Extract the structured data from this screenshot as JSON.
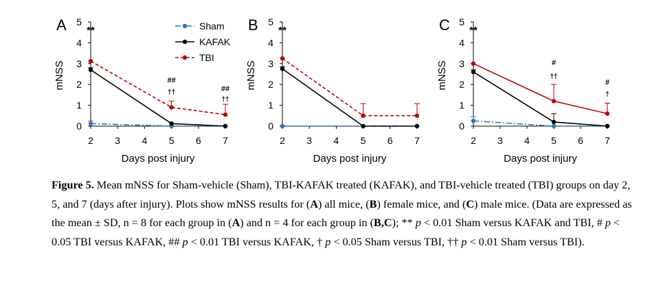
{
  "chart_data": [
    {
      "type": "line",
      "panel_label": "A",
      "x": [
        2,
        5,
        7
      ],
      "xticks": [
        2,
        3,
        4,
        5,
        6,
        7
      ],
      "yticks": [
        0,
        1,
        2,
        3,
        4,
        5
      ],
      "xlim": [
        2,
        7
      ],
      "ylim": [
        0,
        5
      ],
      "xlabel": "Days post injury",
      "ylabel": "mNSS",
      "series": [
        {
          "name": "Sham",
          "values": [
            0.12,
            0.0,
            0.0
          ],
          "sd": [
            0.12,
            0.0,
            0.0
          ],
          "color": "#2e75b6",
          "style": "dashdot"
        },
        {
          "name": "KAFAK",
          "values": [
            2.7,
            0.12,
            0.0
          ],
          "sd": [
            0.1,
            0.0,
            0.0
          ],
          "color": "#000000",
          "style": "solid"
        },
        {
          "name": "TBI",
          "values": [
            3.12,
            0.9,
            0.55
          ],
          "sd": [
            0.0,
            0.3,
            0.5
          ],
          "color": "#c00000",
          "style": "dashed"
        }
      ],
      "annotations": [
        {
          "x": 2,
          "y": 4.6,
          "text": "**"
        },
        {
          "x": 5,
          "y": 2.25,
          "text": "##"
        },
        {
          "x": 5,
          "y": 1.7,
          "text": "††"
        },
        {
          "x": 7,
          "y": 1.85,
          "text": "##"
        },
        {
          "x": 7,
          "y": 1.35,
          "text": "††"
        }
      ],
      "legend": {
        "position": "top",
        "entries": [
          "Sham",
          "KAFAK",
          "TBI"
        ]
      }
    },
    {
      "type": "line",
      "panel_label": "B",
      "x": [
        2,
        5,
        7
      ],
      "xticks": [
        2,
        3,
        4,
        5,
        6,
        7
      ],
      "yticks": [
        0,
        1,
        2,
        3,
        4,
        5
      ],
      "xlim": [
        2,
        7
      ],
      "ylim": [
        0,
        5
      ],
      "xlabel": "Days post injury",
      "ylabel": "mNSS",
      "series": [
        {
          "name": "Sham",
          "values": [
            0.0,
            0.0,
            0.0
          ],
          "sd": [
            0.0,
            0.0,
            0.0
          ],
          "color": "#2e75b6",
          "style": "dashdot"
        },
        {
          "name": "KAFAK",
          "values": [
            2.75,
            0.0,
            0.0
          ],
          "sd": [
            0.1,
            0.0,
            0.0
          ],
          "color": "#000000",
          "style": "solid"
        },
        {
          "name": "TBI",
          "values": [
            3.25,
            0.5,
            0.5
          ],
          "sd": [
            0.0,
            0.58,
            0.58
          ],
          "color": "#c00000",
          "style": "dashed"
        }
      ],
      "annotations": [
        {
          "x": 2,
          "y": 4.6,
          "text": "**"
        }
      ]
    },
    {
      "type": "line",
      "panel_label": "C",
      "x": [
        2,
        5,
        7
      ],
      "xticks": [
        2,
        3,
        4,
        5,
        6,
        7
      ],
      "yticks": [
        0,
        1,
        2,
        3,
        4,
        5
      ],
      "xlim": [
        2,
        7
      ],
      "ylim": [
        0,
        5
      ],
      "xlabel": "Days post injury",
      "ylabel": "mNSS",
      "series": [
        {
          "name": "Sham",
          "values": [
            0.25,
            0.0,
            0.0
          ],
          "sd": [
            0.2,
            0.0,
            0.0
          ],
          "color": "#2e75b6",
          "style": "dashdot"
        },
        {
          "name": "KAFAK",
          "values": [
            2.6,
            0.2,
            0.0
          ],
          "sd": [
            0.1,
            0.4,
            0.0
          ],
          "color": "#000000",
          "style": "solid"
        },
        {
          "name": "TBI",
          "values": [
            3.0,
            1.2,
            0.6
          ],
          "sd": [
            0.0,
            0.8,
            0.5
          ],
          "color": "#c00000",
          "style": "solid"
        }
      ],
      "annotations": [
        {
          "x": 2,
          "y": 4.6,
          "text": "**"
        },
        {
          "x": 5,
          "y": 3.1,
          "text": "#"
        },
        {
          "x": 5,
          "y": 2.45,
          "text": "††"
        },
        {
          "x": 7,
          "y": 2.15,
          "text": "#"
        },
        {
          "x": 7,
          "y": 1.6,
          "text": "†"
        }
      ]
    }
  ],
  "caption": {
    "figure_label": "Figure 5.",
    "parts": [
      {
        "t": " Mean mNSS for Sham-vehicle (Sham), TBI-KAFAK treated (KAFAK), and TBI-vehicle treated (TBI) groups on day 2, 5, and 7 (days after injury). Plots show mNSS results for ("
      },
      {
        "t": "A",
        "b": true
      },
      {
        "t": ") all mice, ("
      },
      {
        "t": "B",
        "b": true
      },
      {
        "t": ") female mice, and ("
      },
      {
        "t": "C",
        "b": true
      },
      {
        "t": ") male mice. (Data are expressed as the mean ± SD, n = 8 for each group in ("
      },
      {
        "t": "A",
        "b": true
      },
      {
        "t": ") and n = 4 for each group in ("
      },
      {
        "t": "B,C",
        "b": true
      },
      {
        "t": "); ** "
      },
      {
        "t": "p",
        "i": true
      },
      {
        "t": " < 0.01 Sham versus KAFAK and TBI, # "
      },
      {
        "t": "p",
        "i": true
      },
      {
        "t": " < 0.05 TBI versus KAFAK, ## "
      },
      {
        "t": "p",
        "i": true
      },
      {
        "t": " < 0.01 TBI versus KAFAK, † "
      },
      {
        "t": "p",
        "i": true
      },
      {
        "t": " < 0.05 Sham versus TBI, †† "
      },
      {
        "t": "p",
        "i": true
      },
      {
        "t": " < 0.01 Sham versus TBI)."
      }
    ]
  }
}
